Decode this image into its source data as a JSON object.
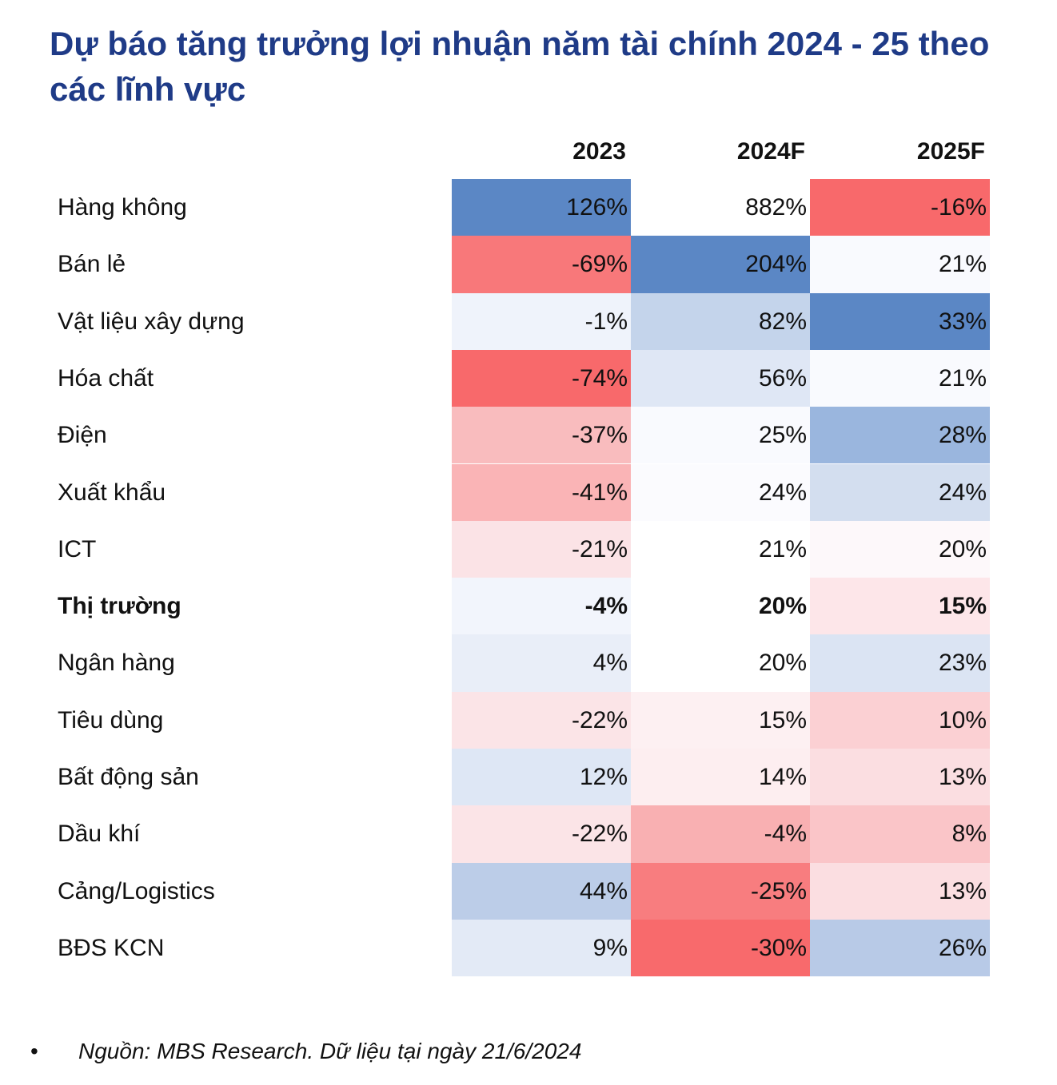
{
  "title": "Dự báo tăng trưởng lợi nhuận năm tài chính 2024 - 25 theo các lĩnh vực",
  "chart_data": {
    "type": "table",
    "title": "Dự báo tăng trưởng lợi nhuận năm tài chính 2024 - 25 theo các lĩnh vực",
    "columns": [
      "2023",
      "2024F",
      "2025F"
    ],
    "rows": [
      {
        "label": "Hàng không",
        "values": [
          "126%",
          "882%",
          "-16%"
        ],
        "colors": [
          "#5b87c5",
          "#ffffff",
          "#f8696b"
        ],
        "bold": false
      },
      {
        "label": "Bán lẻ",
        "values": [
          "-69%",
          "204%",
          "21%"
        ],
        "colors": [
          "#f8787a",
          "#5b87c5",
          "#f9fafe"
        ],
        "bold": false
      },
      {
        "label": "Vật liệu xây dựng",
        "values": [
          "-1%",
          "82%",
          "33%"
        ],
        "colors": [
          "#eff3fb",
          "#c4d4eb",
          "#5b87c5"
        ],
        "bold": false
      },
      {
        "label": "Hóa chất",
        "values": [
          "-74%",
          "56%",
          "21%"
        ],
        "colors": [
          "#f8696b",
          "#dfe7f5",
          "#f9fafe"
        ],
        "bold": false
      },
      {
        "label": "Điện",
        "values": [
          "-37%",
          "25%",
          "28%"
        ],
        "colors": [
          "#f9bcbe",
          "#f9fafe",
          "#9ab6de"
        ],
        "bold": false
      },
      {
        "label": "Xuất khẩu",
        "values": [
          "-41%",
          "24%",
          "24%"
        ],
        "colors": [
          "#fab4b6",
          "#fbfbfe",
          "#d3deef"
        ],
        "bold": false
      },
      {
        "label": "ICT",
        "values": [
          "-21%",
          "21%",
          "20%"
        ],
        "colors": [
          "#fbe3e6",
          "#ffffff",
          "#fdf8fa"
        ],
        "bold": false
      },
      {
        "label": "Thị trường",
        "values": [
          "-4%",
          "20%",
          "15%"
        ],
        "colors": [
          "#f2f5fc",
          "#ffffff",
          "#fde6e9"
        ],
        "bold": true
      },
      {
        "label": "Ngân hàng",
        "values": [
          "4%",
          "20%",
          "23%"
        ],
        "colors": [
          "#e9eef8",
          "#ffffff",
          "#dbe4f3"
        ],
        "bold": false
      },
      {
        "label": "Tiêu dùng",
        "values": [
          "-22%",
          "15%",
          "10%"
        ],
        "colors": [
          "#fbe4e7",
          "#fdf0f2",
          "#fbd0d3"
        ],
        "bold": false
      },
      {
        "label": "Bất động sản",
        "values": [
          "12%",
          "14%",
          "13%"
        ],
        "colors": [
          "#dee7f5",
          "#fdeef0",
          "#fbdee1"
        ],
        "bold": false
      },
      {
        "label": "Dầu khí",
        "values": [
          "-22%",
          "-4%",
          "8%"
        ],
        "colors": [
          "#fbe4e7",
          "#f9b0b2",
          "#fac5c8"
        ],
        "bold": false
      },
      {
        "label": "Cảng/Logistics",
        "values": [
          "44%",
          "-25%",
          "13%"
        ],
        "colors": [
          "#bccde8",
          "#f87d7f",
          "#fbdee1"
        ],
        "bold": false
      },
      {
        "label": "BĐS KCN",
        "values": [
          "9%",
          "-30%",
          "26%"
        ],
        "colors": [
          "#e3eaf6",
          "#f86a6c",
          "#b8cae7"
        ],
        "bold": false
      }
    ]
  },
  "footer": {
    "bullet": "•",
    "text": "Nguồn: MBS Research. Dữ liệu tại ngày 21/6/2024"
  }
}
